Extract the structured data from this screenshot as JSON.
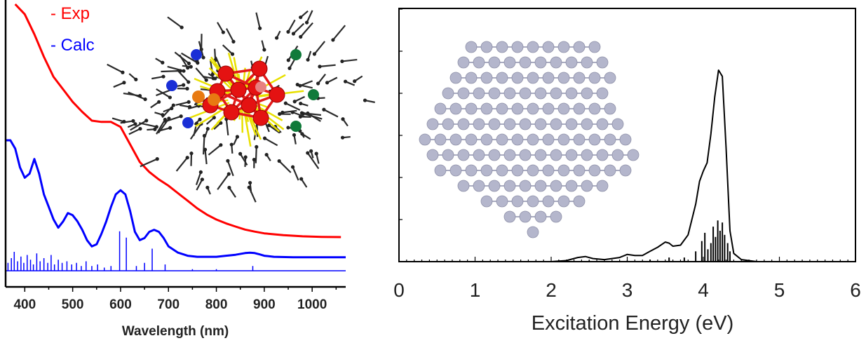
{
  "chart_data": [
    {
      "type": "line",
      "xlabel": "Wavelength (nm)",
      "ylabel": "",
      "xlim": [
        360,
        1070
      ],
      "ylim": [
        0,
        1
      ],
      "x_ticks": [
        400,
        500,
        600,
        700,
        800,
        900,
        1000
      ],
      "legend": {
        "placement": "top-left",
        "entries": [
          "- Exp",
          "- Calc"
        ]
      },
      "colors": {
        "Exp": "#ff0000",
        "Calc": "#0000ff"
      },
      "series": [
        {
          "name": "Exp",
          "color": "#ff0000",
          "x": [
            380,
            400,
            420,
            440,
            460,
            480,
            500,
            520,
            540,
            560,
            580,
            600,
            620,
            640,
            660,
            680,
            700,
            720,
            740,
            760,
            780,
            800,
            820,
            840,
            860,
            880,
            900,
            940,
            980,
            1020,
            1060
          ],
          "y": [
            1.0,
            0.96,
            0.88,
            0.79,
            0.71,
            0.66,
            0.61,
            0.57,
            0.535,
            0.53,
            0.53,
            0.51,
            0.44,
            0.37,
            0.33,
            0.3,
            0.275,
            0.245,
            0.215,
            0.185,
            0.16,
            0.14,
            0.125,
            0.112,
            0.1,
            0.092,
            0.085,
            0.078,
            0.073,
            0.071,
            0.07
          ]
        },
        {
          "name": "Calc",
          "color": "#0000ff",
          "x": [
            360,
            370,
            380,
            390,
            400,
            410,
            420,
            430,
            440,
            450,
            460,
            470,
            480,
            490,
            500,
            510,
            520,
            530,
            540,
            550,
            560,
            570,
            580,
            590,
            600,
            610,
            620,
            630,
            640,
            650,
            660,
            670,
            680,
            690,
            700,
            720,
            740,
            760,
            780,
            800,
            820,
            840,
            860,
            870,
            880,
            890,
            900,
            920,
            960,
            1000,
            1070
          ],
          "y": [
            0.6,
            0.6,
            0.56,
            0.47,
            0.42,
            0.44,
            0.51,
            0.44,
            0.34,
            0.28,
            0.22,
            0.18,
            0.21,
            0.25,
            0.24,
            0.21,
            0.17,
            0.12,
            0.09,
            0.1,
            0.15,
            0.21,
            0.28,
            0.34,
            0.36,
            0.34,
            0.26,
            0.16,
            0.12,
            0.13,
            0.16,
            0.17,
            0.16,
            0.13,
            0.09,
            0.06,
            0.045,
            0.04,
            0.04,
            0.04,
            0.045,
            0.05,
            0.058,
            0.06,
            0.058,
            0.052,
            0.045,
            0.04,
            0.038,
            0.038,
            0.038
          ]
        }
      ],
      "calc_stick_baseline": 0.0,
      "calc_sticks": {
        "x": [
          365,
          372,
          378,
          385,
          392,
          398,
          405,
          412,
          418,
          425,
          432,
          440,
          448,
          455,
          462,
          470,
          478,
          488,
          498,
          508,
          518,
          528,
          540,
          552,
          566,
          580,
          598,
          612,
          633,
          650,
          666,
          693,
          750,
          800,
          876
        ],
        "y": [
          0.05,
          0.08,
          0.12,
          0.06,
          0.09,
          0.05,
          0.1,
          0.07,
          0.04,
          0.11,
          0.06,
          0.08,
          0.05,
          0.1,
          0.04,
          0.07,
          0.05,
          0.06,
          0.04,
          0.05,
          0.03,
          0.06,
          0.03,
          0.04,
          0.02,
          0.03,
          0.25,
          0.21,
          0.03,
          0.05,
          0.14,
          0.04,
          0.01,
          0.01,
          0.03
        ]
      }
    },
    {
      "type": "line",
      "xlabel": "Excitation Energy (eV)",
      "ylabel": "",
      "xlim": [
        0,
        6
      ],
      "ylim": [
        0,
        1
      ],
      "x_ticks": [
        0,
        1,
        2,
        3,
        4,
        5,
        6
      ],
      "grid": false,
      "series": [
        {
          "color": "#000000",
          "x": [
            0,
            2.0,
            2.2,
            2.35,
            2.45,
            2.55,
            2.7,
            2.9,
            3.0,
            3.1,
            3.2,
            3.3,
            3.4,
            3.5,
            3.55,
            3.6,
            3.7,
            3.8,
            3.9,
            3.95,
            4.0,
            4.05,
            4.1,
            4.15,
            4.2,
            4.25,
            4.3,
            4.35,
            4.4,
            4.5,
            4.7
          ],
          "y": [
            0,
            0,
            0.005,
            0.02,
            0.025,
            0.015,
            0.01,
            0.02,
            0.035,
            0.03,
            0.03,
            0.05,
            0.07,
            0.095,
            0.09,
            0.075,
            0.08,
            0.13,
            0.28,
            0.39,
            0.44,
            0.48,
            0.62,
            0.8,
            0.93,
            0.9,
            0.55,
            0.15,
            0.04,
            0.01,
            0
          ]
        }
      ],
      "sticks": {
        "x": [
          2.5,
          3.0,
          3.3,
          3.55,
          3.75,
          3.9,
          3.98,
          4.02,
          4.06,
          4.1,
          4.13,
          4.16,
          4.19,
          4.22,
          4.25,
          4.28,
          4.32,
          4.35
        ],
        "y": [
          0.005,
          0.005,
          0.01,
          0.02,
          0.02,
          0.05,
          0.1,
          0.14,
          0.06,
          0.09,
          0.17,
          0.12,
          0.2,
          0.15,
          0.19,
          0.13,
          0.09,
          0.05
        ]
      }
    }
  ]
}
